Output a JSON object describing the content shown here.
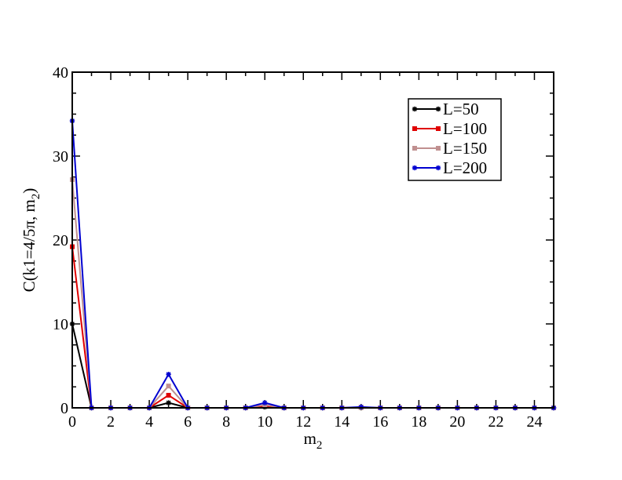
{
  "chart_data": {
    "type": "line",
    "xlabel_base": "m",
    "xlabel_sub": "2",
    "ylabel_main": "C(k1=4/5π, m",
    "ylabel_sub": "2",
    "ylabel_tail": ")",
    "xlim": [
      0,
      25
    ],
    "ylim": [
      0,
      40
    ],
    "xticks": [
      "0",
      "2",
      "4",
      "6",
      "8",
      "10",
      "12",
      "14",
      "16",
      "18",
      "20",
      "22",
      "24"
    ],
    "yticks": [
      "0",
      "10",
      "20",
      "30",
      "40"
    ],
    "grid": false,
    "legend_position": "top-right",
    "x": [
      0,
      1,
      2,
      3,
      4,
      5,
      6,
      7,
      8,
      9,
      10,
      11,
      12,
      13,
      14,
      15,
      16,
      17,
      18,
      19,
      20,
      21,
      22,
      23,
      24,
      25
    ],
    "series": [
      {
        "name": "L=50",
        "color": "#000000",
        "marker": "star",
        "values": [
          10,
          0,
          0,
          0,
          0,
          0.6,
          0,
          0,
          0,
          0,
          0.1,
          0,
          0,
          0,
          0,
          0,
          0,
          0,
          0,
          0,
          0,
          0,
          0,
          0,
          0,
          0
        ]
      },
      {
        "name": "L=100",
        "color": "#e00000",
        "marker": "square",
        "values": [
          19.2,
          0,
          0,
          0,
          0,
          1.5,
          0,
          0,
          0,
          0,
          0.2,
          0,
          0,
          0,
          0,
          0.05,
          0,
          0,
          0,
          0,
          0,
          0,
          0,
          0,
          0,
          0
        ]
      },
      {
        "name": "L=150",
        "color": "#c09090",
        "marker": "square",
        "values": [
          27.2,
          0,
          0,
          0,
          0,
          2.6,
          0,
          0,
          0,
          0,
          0.35,
          0,
          0,
          0,
          0,
          0.05,
          0,
          0,
          0,
          0,
          0,
          0,
          0,
          0,
          0,
          0
        ]
      },
      {
        "name": "L=200",
        "color": "#0000d0",
        "marker": "star",
        "values": [
          34.2,
          0,
          0,
          0,
          0,
          4.0,
          0,
          0,
          0,
          0,
          0.6,
          0,
          0,
          0,
          0,
          0.1,
          0,
          0,
          0,
          0,
          0,
          0,
          0,
          0,
          0,
          0
        ]
      }
    ]
  }
}
